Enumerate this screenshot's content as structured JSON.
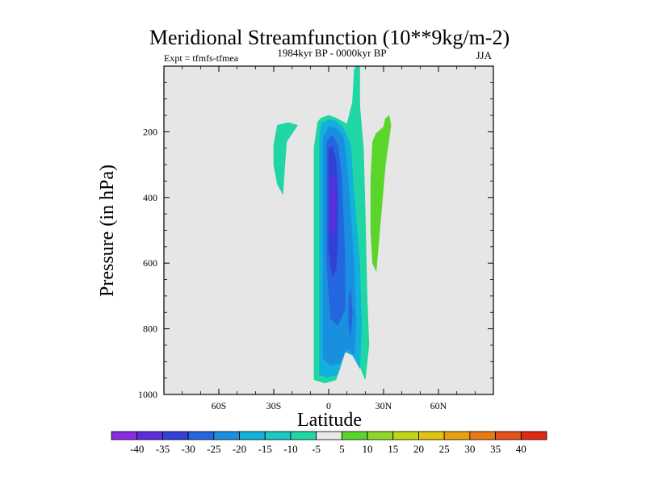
{
  "chart_data": {
    "type": "contour",
    "title": "Meridional Streamfunction (10**9kg/m-2)",
    "subtitle_left": "Expt = tfmfs-tfmea",
    "subtitle_center": "1984kyr BP - 0000kyr BP",
    "subtitle_right": "JJA",
    "xlabel": "Latitude",
    "ylabel": "Pressure (in hPa)",
    "xlim": [
      -90,
      90
    ],
    "ylim": [
      0,
      1000
    ],
    "x_ticks": [
      {
        "value": -60,
        "label": "60S"
      },
      {
        "value": -30,
        "label": "30S"
      },
      {
        "value": 0,
        "label": "0"
      },
      {
        "value": 30,
        "label": "30N"
      },
      {
        "value": 60,
        "label": "60N"
      }
    ],
    "y_ticks": [
      {
        "value": 200,
        "label": "200"
      },
      {
        "value": 400,
        "label": "400"
      },
      {
        "value": 600,
        "label": "600"
      },
      {
        "value": 800,
        "label": "800"
      },
      {
        "value": 1000,
        "label": "1000"
      }
    ],
    "colorbar": {
      "labels": [
        "-40",
        "-35",
        "-30",
        "-25",
        "-20",
        "-15",
        "-10",
        "-5",
        "5",
        "10",
        "15",
        "20",
        "25",
        "30",
        "35",
        "40"
      ],
      "colors": [
        "#8a2be2",
        "#5b2ed9",
        "#3340d6",
        "#2466e0",
        "#1a8fe0",
        "#12b0dc",
        "#1ac9c4",
        "#1fd6a4",
        "#e8e8e8",
        "#5ad62a",
        "#8fd82a",
        "#c2d618",
        "#e2c410",
        "#e8a012",
        "#e77a12",
        "#e4521a",
        "#dd2a10"
      ]
    },
    "regions": [
      {
        "level_min": -10,
        "level_max": -5,
        "color": "#1fd6a4",
        "points": [
          [
            -30,
            240
          ],
          [
            -28,
            180
          ],
          [
            -22,
            172
          ],
          [
            -17,
            180
          ],
          [
            -23,
            230
          ],
          [
            -24,
            305
          ],
          [
            -25,
            390
          ],
          [
            -28,
            360
          ],
          [
            -30,
            300
          ]
        ]
      },
      {
        "level_min": -10,
        "level_max": -5,
        "color": "#1fd6a4",
        "points": [
          [
            -8,
            250
          ],
          [
            -6,
            170
          ],
          [
            -4,
            158
          ],
          [
            0,
            150
          ],
          [
            4,
            158
          ],
          [
            10,
            176
          ],
          [
            13,
            110
          ],
          [
            14,
            10
          ],
          [
            15,
            0
          ],
          [
            17,
            0
          ],
          [
            17,
            120
          ],
          [
            19,
            250
          ],
          [
            20,
            450
          ],
          [
            21,
            700
          ],
          [
            22,
            850
          ],
          [
            20,
            955
          ],
          [
            16,
            900
          ],
          [
            12,
            840
          ],
          [
            8,
            880
          ],
          [
            4,
            955
          ],
          [
            -2,
            965
          ],
          [
            -8,
            955
          ],
          [
            -8,
            850
          ],
          [
            -8,
            600
          ],
          [
            -8,
            400
          ]
        ]
      },
      {
        "level_min": -15,
        "level_max": -10,
        "color": "#12b0dc",
        "points": [
          [
            -5,
            220
          ],
          [
            -4,
            175
          ],
          [
            0,
            163
          ],
          [
            4,
            168
          ],
          [
            8,
            188
          ],
          [
            12,
            240
          ],
          [
            14,
            400
          ],
          [
            17,
            600
          ],
          [
            18,
            800
          ],
          [
            17,
            920
          ],
          [
            13,
            880
          ],
          [
            9,
            870
          ],
          [
            5,
            940
          ],
          [
            -1,
            948
          ],
          [
            -5,
            940
          ],
          [
            -5,
            700
          ],
          [
            -5,
            400
          ]
        ]
      },
      {
        "level_min": -20,
        "level_max": -15,
        "color": "#1a8fe0",
        "points": [
          [
            -3,
            220
          ],
          [
            0,
            185
          ],
          [
            4,
            188
          ],
          [
            8,
            215
          ],
          [
            10,
            300
          ],
          [
            12,
            450
          ],
          [
            14,
            620
          ],
          [
            15,
            780
          ],
          [
            14,
            880
          ],
          [
            10,
            860
          ],
          [
            6,
            905
          ],
          [
            1,
            912
          ],
          [
            -3,
            890
          ],
          [
            -3,
            650
          ],
          [
            -3,
            400
          ]
        ]
      },
      {
        "level_min": -25,
        "level_max": -20,
        "color": "#2466e0",
        "points": [
          [
            -1,
            230
          ],
          [
            2,
            210
          ],
          [
            5,
            240
          ],
          [
            7,
            330
          ],
          [
            8,
            450
          ],
          [
            9,
            600
          ],
          [
            9,
            740
          ],
          [
            5,
            790
          ],
          [
            1,
            770
          ],
          [
            -1,
            600
          ],
          [
            -1,
            400
          ]
        ]
      },
      {
        "level_min": -30,
        "level_max": -25,
        "color": "#3340d6",
        "points": [
          [
            0,
            250
          ],
          [
            2,
            245
          ],
          [
            4,
            290
          ],
          [
            5,
            400
          ],
          [
            5,
            530
          ],
          [
            4,
            620
          ],
          [
            2,
            640
          ],
          [
            0,
            560
          ],
          [
            0,
            400
          ]
        ]
      },
      {
        "level_min": -35,
        "level_max": -30,
        "color": "#5b2ed9",
        "points": [
          [
            1,
            330
          ],
          [
            3,
            340
          ],
          [
            4,
            430
          ],
          [
            3,
            510
          ],
          [
            1,
            510
          ],
          [
            1,
            420
          ]
        ]
      },
      {
        "level_min": -25,
        "level_max": -20,
        "color": "#2466e0",
        "points": [
          [
            11,
            700
          ],
          [
            12,
            680
          ],
          [
            13,
            750
          ],
          [
            12,
            820
          ],
          [
            11,
            790
          ]
        ]
      },
      {
        "level_min": 5,
        "level_max": 10,
        "color": "#5ad62a",
        "points": [
          [
            24,
            230
          ],
          [
            26,
            205
          ],
          [
            30,
            185
          ],
          [
            31,
            160
          ],
          [
            33,
            150
          ],
          [
            34,
            180
          ],
          [
            31,
            300
          ],
          [
            29,
            430
          ],
          [
            27,
            560
          ],
          [
            26,
            625
          ],
          [
            24,
            600
          ],
          [
            23,
            500
          ],
          [
            23,
            350
          ]
        ]
      }
    ]
  }
}
